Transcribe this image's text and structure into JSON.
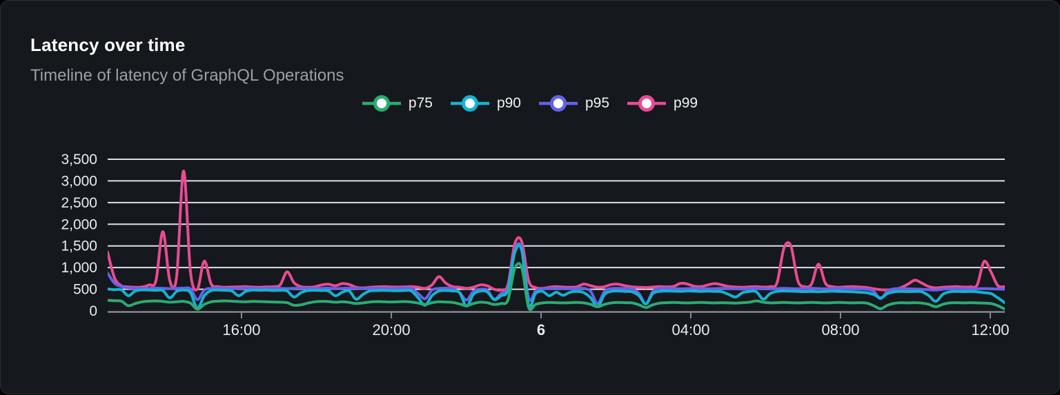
{
  "card": {
    "title": "Latency over time",
    "subtitle": "Timeline of latency of GraphQL Operations"
  },
  "colors": {
    "page_background": "#000000",
    "card_background": "#15181d",
    "card_border": "#2d3038",
    "title": "#ffffff",
    "subtitle": "#9aa0a8",
    "gridline": "#dde1e8",
    "axis": "#84888f",
    "tick_label": "#e9ebef",
    "legend_text": "#f0f2f4",
    "p75": "#2bab71",
    "p90": "#15b3d0",
    "p95": "#6462e9",
    "p99": "#e94b92"
  },
  "chart_data": {
    "type": "line",
    "title": "Latency over time",
    "subtitle": "Timeline of latency of GraphQL Operations",
    "grid": true,
    "legend_position": "top",
    "legend": [
      "p75",
      "p90",
      "p95",
      "p99"
    ],
    "x_axis": {
      "ticks": [
        {
          "label": "16:00",
          "pos": 0.1492,
          "bold": false
        },
        {
          "label": "20:00",
          "pos": 0.3162,
          "bold": false
        },
        {
          "label": "6",
          "pos": 0.4831,
          "bold": true
        },
        {
          "label": "04:00",
          "pos": 0.65,
          "bold": false
        },
        {
          "label": "08:00",
          "pos": 0.8169,
          "bold": false
        },
        {
          "label": "12:00",
          "pos": 0.9838,
          "bold": false
        }
      ]
    },
    "y_axis": {
      "range": [
        0,
        3500
      ],
      "ticks": [
        {
          "label": "0",
          "value": 0
        },
        {
          "label": "500",
          "value": 500
        },
        {
          "label": "1,000",
          "value": 1000
        },
        {
          "label": "1,500",
          "value": 1500
        },
        {
          "label": "2,000",
          "value": 2000
        },
        {
          "label": "2,500",
          "value": 2500
        },
        {
          "label": "3,000",
          "value": 3000
        },
        {
          "label": "3,500",
          "value": 3500
        }
      ]
    },
    "series": [
      {
        "name": "p75",
        "color_key": "p75",
        "values": [
          245,
          235,
          225,
          120,
          170,
          210,
          225,
          230,
          220,
          200,
          210,
          220,
          180,
          40,
          150,
          210,
          225,
          230,
          225,
          215,
          210,
          220,
          215,
          210,
          205,
          200,
          190,
          130,
          140,
          180,
          210,
          220,
          215,
          200,
          210,
          195,
          170,
          185,
          205,
          215,
          210,
          205,
          210,
          215,
          205,
          180,
          150,
          190,
          210,
          205,
          195,
          160,
          120,
          170,
          200,
          190,
          150,
          170,
          250,
          980,
          1000,
          80,
          150,
          185,
          195,
          190,
          185,
          190,
          195,
          185,
          150,
          95,
          150,
          185,
          195,
          190,
          185,
          140,
          80,
          140,
          180,
          190,
          195,
          190,
          185,
          190,
          195,
          190,
          185,
          190,
          185,
          180,
          190,
          200,
          230,
          200,
          185,
          190,
          195,
          190,
          185,
          190,
          195,
          190,
          185,
          190,
          195,
          190,
          185,
          190,
          180,
          120,
          50,
          130,
          175,
          190,
          185,
          190,
          180,
          150,
          95,
          150,
          185,
          190,
          185,
          190,
          185,
          180,
          170,
          120,
          40
        ]
      },
      {
        "name": "p90",
        "color_key": "p90",
        "values": [
          505,
          490,
          485,
          350,
          460,
          485,
          480,
          475,
          470,
          300,
          450,
          480,
          420,
          60,
          350,
          470,
          480,
          475,
          460,
          350,
          450,
          480,
          475,
          480,
          470,
          475,
          460,
          320,
          420,
          470,
          475,
          470,
          460,
          350,
          430,
          460,
          270,
          380,
          460,
          470,
          475,
          470,
          465,
          470,
          460,
          300,
          130,
          350,
          460,
          470,
          460,
          420,
          110,
          380,
          460,
          440,
          260,
          350,
          480,
          1350,
          1400,
          130,
          400,
          450,
          350,
          430,
          360,
          430,
          450,
          420,
          300,
          95,
          380,
          450,
          460,
          450,
          440,
          350,
          160,
          400,
          450,
          460,
          455,
          450,
          460,
          455,
          450,
          455,
          450,
          440,
          380,
          320,
          420,
          450,
          440,
          270,
          400,
          450,
          460,
          455,
          450,
          445,
          450,
          440,
          450,
          455,
          450,
          445,
          440,
          430,
          420,
          380,
          300,
          400,
          440,
          450,
          445,
          450,
          440,
          350,
          220,
          380,
          440,
          450,
          445,
          450,
          440,
          420,
          400,
          300,
          190
        ]
      },
      {
        "name": "p95",
        "color_key": "p95",
        "values": [
          870,
          640,
          560,
          530,
          520,
          515,
          520,
          525,
          520,
          515,
          520,
          525,
          510,
          260,
          480,
          520,
          525,
          520,
          515,
          520,
          525,
          520,
          515,
          520,
          525,
          520,
          515,
          520,
          525,
          520,
          515,
          520,
          525,
          515,
          520,
          525,
          520,
          515,
          520,
          525,
          520,
          515,
          520,
          525,
          520,
          400,
          280,
          480,
          520,
          525,
          515,
          420,
          250,
          450,
          500,
          480,
          270,
          400,
          520,
          1400,
          1450,
          290,
          460,
          510,
          515,
          520,
          515,
          510,
          515,
          520,
          450,
          170,
          450,
          515,
          520,
          515,
          510,
          400,
          160,
          450,
          515,
          520,
          515,
          510,
          515,
          520,
          515,
          510,
          515,
          520,
          515,
          510,
          505,
          515,
          520,
          510,
          505,
          515,
          520,
          515,
          510,
          515,
          520,
          515,
          510,
          515,
          520,
          515,
          510,
          505,
          500,
          450,
          280,
          460,
          510,
          515,
          510,
          505,
          500,
          490,
          480,
          500,
          510,
          515,
          510,
          505,
          510,
          515,
          510,
          505,
          500
        ]
      },
      {
        "name": "p99",
        "color_key": "p99",
        "values": [
          1350,
          760,
          580,
          555,
          545,
          550,
          600,
          700,
          1830,
          700,
          800,
          3230,
          900,
          500,
          1150,
          620,
          560,
          545,
          550,
          555,
          560,
          550,
          545,
          555,
          560,
          600,
          900,
          650,
          560,
          545,
          555,
          600,
          615,
          580,
          630,
          610,
          545,
          530,
          545,
          555,
          560,
          555,
          550,
          555,
          560,
          545,
          520,
          600,
          790,
          640,
          560,
          545,
          520,
          545,
          600,
          580,
          500,
          480,
          600,
          1550,
          1600,
          700,
          540,
          520,
          545,
          560,
          550,
          545,
          555,
          620,
          580,
          545,
          560,
          610,
          615,
          580,
          555,
          545,
          540,
          550,
          560,
          555,
          565,
          635,
          620,
          570,
          560,
          600,
          630,
          600,
          565,
          550,
          545,
          555,
          560,
          550,
          560,
          650,
          1450,
          1500,
          700,
          560,
          620,
          1080,
          640,
          560,
          545,
          555,
          560,
          550,
          540,
          510,
          490,
          485,
          500,
          540,
          620,
          710,
          640,
          560,
          530,
          545,
          555,
          560,
          550,
          555,
          600,
          1140,
          900,
          580,
          560
        ]
      }
    ]
  }
}
